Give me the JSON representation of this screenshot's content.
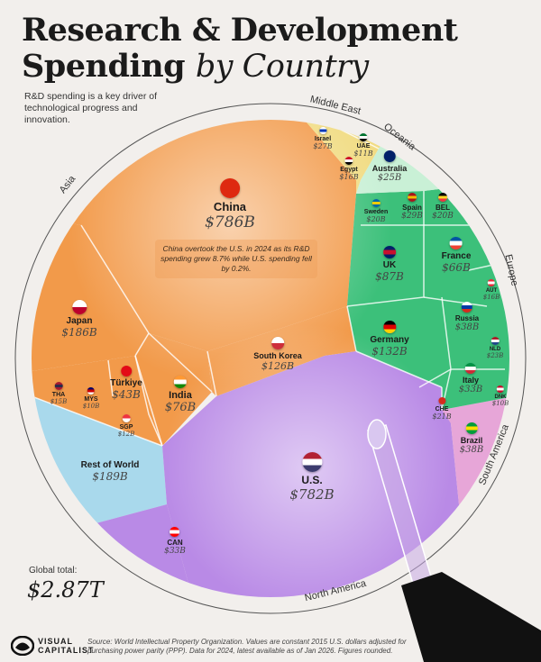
{
  "header": {
    "title_line1": "Research & Development",
    "title_line2_bold": "Spending",
    "title_line2_italic": "by Country",
    "subtitle": "R&D spending is a key driver of technological progress and innovation."
  },
  "annotation": "China overtook the U.S. in 2024 as its R&D spending grew 8.7% while U.S. spending fell by 0.2%.",
  "global_total": {
    "label": "Global total:",
    "value": "$2.87T"
  },
  "footer": {
    "logo_line1": "VISUAL",
    "logo_line2": "CAPITALIST",
    "source": "Source: World Intellectual Property Organization. Values are constant 2015 U.S. dollars adjusted for purchasing power parity (PPP). Data for 2024, latest available as of Jan 2026. Figures rounded."
  },
  "colors": {
    "asia": "#f29a4a",
    "europe": "#3cc07a",
    "middle_east": "#f1dc84",
    "oceania": "#c9f0d6",
    "north_america": "#b98ae6",
    "south_america": "#e7a6d8",
    "rest_of_world": "#a9d9ec"
  },
  "chart_data": {
    "type": "voronoi-treemap",
    "unit": "USD billions (constant 2015, PPP)",
    "regions": [
      "Asia",
      "Middle East",
      "Oceania",
      "Europe",
      "South America",
      "North America"
    ],
    "countries": [
      {
        "name": "China",
        "value": "$786B",
        "billions": 786,
        "region": "Asia",
        "flag": [
          "#de2910",
          "#de2910"
        ]
      },
      {
        "name": "Japan",
        "value": "$186B",
        "billions": 186,
        "region": "Asia",
        "flag": [
          "#ffffff",
          "#bc002d"
        ]
      },
      {
        "name": "South Korea",
        "value": "$126B",
        "billions": 126,
        "region": "Asia",
        "flag": [
          "#ffffff",
          "#cd2e3a"
        ]
      },
      {
        "name": "India",
        "value": "$76B",
        "billions": 76,
        "region": "Asia",
        "flag": [
          "#ff9933",
          "#ffffff",
          "#138808"
        ]
      },
      {
        "name": "Türkiye",
        "value": "$43B",
        "billions": 43,
        "region": "Asia",
        "flag": [
          "#e30a17",
          "#e30a17"
        ]
      },
      {
        "name": "THA",
        "value": "$15B",
        "billions": 15,
        "region": "Asia",
        "flag": [
          "#a51931",
          "#2d2a4a",
          "#a51931"
        ]
      },
      {
        "name": "MYS",
        "value": "$10B",
        "billions": 10,
        "region": "Asia",
        "flag": [
          "#010066",
          "#cc0001",
          "#ffffff"
        ]
      },
      {
        "name": "SGP",
        "value": "$12B",
        "billions": 12,
        "region": "Asia",
        "flag": [
          "#ef3340",
          "#ffffff"
        ]
      },
      {
        "name": "Israel",
        "value": "$27B",
        "billions": 27,
        "region": "Middle East",
        "flag": [
          "#ffffff",
          "#0038b8",
          "#ffffff"
        ]
      },
      {
        "name": "UAE",
        "value": "$11B",
        "billions": 11,
        "region": "Middle East",
        "flag": [
          "#00732f",
          "#ffffff",
          "#000000"
        ]
      },
      {
        "name": "Egypt",
        "value": "$16B",
        "billions": 16,
        "region": "Middle East",
        "flag": [
          "#ce1126",
          "#ffffff",
          "#000000"
        ]
      },
      {
        "name": "Australia",
        "value": "$25B",
        "billions": 25,
        "region": "Oceania",
        "flag": [
          "#012169",
          "#012169"
        ]
      },
      {
        "name": "Sweden",
        "value": "$20B",
        "billions": 20,
        "region": "Europe",
        "flag": [
          "#006aa7",
          "#fecc00",
          "#006aa7"
        ]
      },
      {
        "name": "Spain",
        "value": "$29B",
        "billions": 29,
        "region": "Europe",
        "flag": [
          "#aa151b",
          "#f1bf00",
          "#aa151b"
        ]
      },
      {
        "name": "BEL",
        "value": "$20B",
        "billions": 20,
        "region": "Europe",
        "flag": [
          "#000000",
          "#fdda24",
          "#ef3340"
        ]
      },
      {
        "name": "UK",
        "value": "$87B",
        "billions": 87,
        "region": "Europe",
        "flag": [
          "#012169",
          "#c8102e",
          "#012169"
        ]
      },
      {
        "name": "France",
        "value": "$66B",
        "billions": 66,
        "region": "Europe",
        "flag": [
          "#0055a4",
          "#ffffff",
          "#ef4135"
        ]
      },
      {
        "name": "AUT",
        "value": "$16B",
        "billions": 16,
        "region": "Europe",
        "flag": [
          "#ed2939",
          "#ffffff",
          "#ed2939"
        ]
      },
      {
        "name": "Russia",
        "value": "$38B",
        "billions": 38,
        "region": "Europe",
        "flag": [
          "#ffffff",
          "#0039a6",
          "#d52b1e"
        ]
      },
      {
        "name": "Germany",
        "value": "$132B",
        "billions": 132,
        "region": "Europe",
        "flag": [
          "#000000",
          "#dd0000",
          "#ffce00"
        ]
      },
      {
        "name": "NLD",
        "value": "$23B",
        "billions": 23,
        "region": "Europe",
        "flag": [
          "#ae1c28",
          "#ffffff",
          "#21468b"
        ]
      },
      {
        "name": "Italy",
        "value": "$33B",
        "billions": 33,
        "region": "Europe",
        "flag": [
          "#009246",
          "#ffffff",
          "#ce2b37"
        ]
      },
      {
        "name": "CHE",
        "value": "$21B",
        "billions": 21,
        "region": "Europe",
        "flag": [
          "#d52b1e",
          "#d52b1e"
        ]
      },
      {
        "name": "DNK",
        "value": "$10B",
        "billions": 10,
        "region": "Europe",
        "flag": [
          "#c8102e",
          "#ffffff",
          "#c8102e"
        ]
      },
      {
        "name": "Brazil",
        "value": "$38B",
        "billions": 38,
        "region": "South America",
        "flag": [
          "#009c3b",
          "#ffdf00",
          "#009c3b"
        ]
      },
      {
        "name": "U.S.",
        "value": "$782B",
        "billions": 782,
        "region": "North America",
        "flag": [
          "#b22234",
          "#ffffff",
          "#3c3b6e"
        ]
      },
      {
        "name": "CAN",
        "value": "$33B",
        "billions": 33,
        "region": "North America",
        "flag": [
          "#ff0000",
          "#ffffff",
          "#ff0000"
        ]
      },
      {
        "name": "Rest of World",
        "value": "$189B",
        "billions": 189,
        "region": "",
        "flag": null
      }
    ]
  }
}
